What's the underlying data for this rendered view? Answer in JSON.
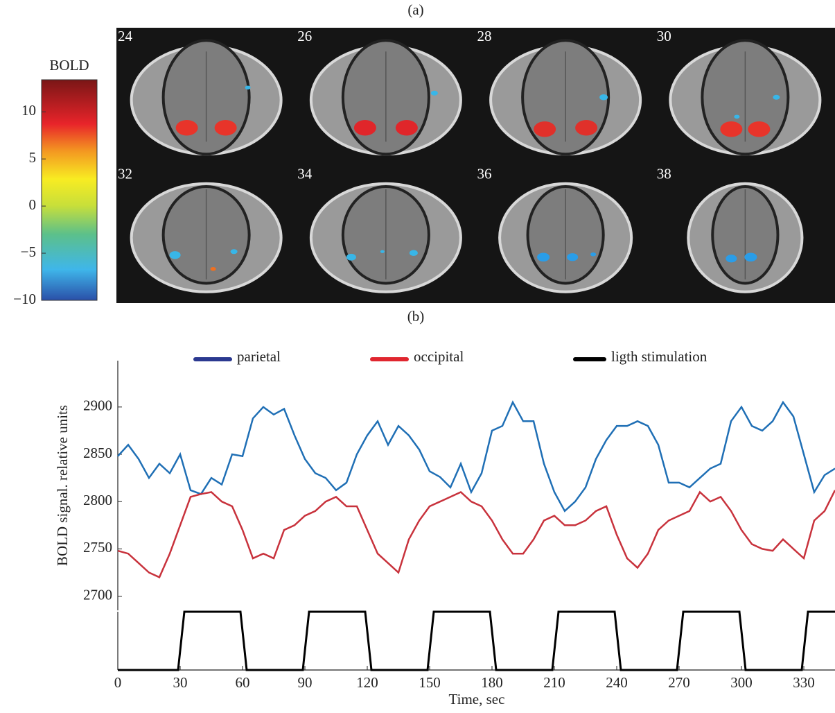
{
  "panel_a": {
    "label": "(a)",
    "colorbar": {
      "title": "BOLD",
      "lim": [
        -10,
        13.4
      ],
      "ticks": [
        {
          "value": -10,
          "label": "−10"
        },
        {
          "value": -5,
          "label": "−5"
        },
        0,
        5,
        10
      ]
    },
    "slices": [
      "24",
      "26",
      "28",
      "30",
      "32",
      "34",
      "36",
      "38"
    ]
  },
  "chart_data": [
    {
      "type": "line",
      "panel_label": "(b)",
      "ylabel": "BOLD signal. relative units",
      "x": [
        0,
        5,
        10,
        15,
        20,
        25,
        30,
        35,
        40,
        45,
        50,
        55,
        60,
        65,
        70,
        75,
        80,
        85,
        90,
        95,
        100,
        105,
        110,
        115,
        120,
        125,
        130,
        135,
        140,
        145,
        150,
        155,
        160,
        165,
        170,
        175,
        180,
        185,
        190,
        195,
        200,
        205,
        210,
        215,
        220,
        225,
        230,
        235,
        240,
        245,
        250,
        255,
        260,
        265,
        270,
        275,
        280,
        285,
        290,
        295,
        300,
        305,
        310,
        315,
        320,
        325,
        330,
        335,
        340,
        345
      ],
      "xlim": [
        0,
        345
      ],
      "ylim": [
        2685,
        2949
      ],
      "yticks": [
        2700,
        2750,
        2800,
        2850,
        2900
      ],
      "series": [
        {
          "name": "parietal",
          "color": "#1f6fb5",
          "legend_color": "#2b3990",
          "values": [
            2848,
            2860,
            2845,
            2825,
            2840,
            2830,
            2850,
            2812,
            2808,
            2825,
            2818,
            2850,
            2848,
            2888,
            2900,
            2892,
            2898,
            2870,
            2845,
            2830,
            2825,
            2812,
            2820,
            2850,
            2870,
            2885,
            2860,
            2880,
            2870,
            2855,
            2832,
            2826,
            2815,
            2840,
            2810,
            2830,
            2875,
            2880,
            2905,
            2885,
            2885,
            2840,
            2810,
            2790,
            2800,
            2815,
            2845,
            2865,
            2880,
            2880,
            2885,
            2880,
            2860,
            2820,
            2820,
            2815,
            2825,
            2835,
            2840,
            2885,
            2900,
            2880,
            2875,
            2885,
            2905,
            2890,
            2850,
            2810,
            2828,
            2835
          ]
        },
        {
          "name": "occipital",
          "color": "#c8323c",
          "legend_color": "#e0262f",
          "values": [
            2748,
            2745,
            2735,
            2725,
            2720,
            2745,
            2775,
            2805,
            2808,
            2810,
            2800,
            2795,
            2770,
            2740,
            2745,
            2740,
            2770,
            2775,
            2785,
            2790,
            2800,
            2805,
            2795,
            2795,
            2770,
            2745,
            2735,
            2725,
            2760,
            2780,
            2795,
            2800,
            2805,
            2810,
            2800,
            2795,
            2780,
            2760,
            2745,
            2745,
            2760,
            2780,
            2785,
            2775,
            2775,
            2780,
            2790,
            2795,
            2765,
            2740,
            2730,
            2745,
            2770,
            2780,
            2785,
            2790,
            2810,
            2800,
            2805,
            2790,
            2770,
            2755,
            2750,
            2748,
            2760,
            2750,
            2740,
            2780,
            2790,
            2812
          ]
        }
      ]
    },
    {
      "type": "line",
      "xlabel": "Time, sec",
      "x": [
        0,
        29,
        32,
        59,
        62,
        89,
        92,
        119,
        122,
        149,
        152,
        179,
        182,
        209,
        212,
        239,
        242,
        269,
        272,
        299,
        302,
        329,
        332,
        345
      ],
      "xlim": [
        0,
        345
      ],
      "ylim": [
        0,
        1
      ],
      "xticks": [
        0,
        30,
        60,
        90,
        120,
        150,
        180,
        210,
        240,
        270,
        300,
        330
      ],
      "series": [
        {
          "name": "ligth stimulation",
          "color": "#000000",
          "values": [
            0,
            0,
            1,
            1,
            0,
            0,
            1,
            1,
            0,
            0,
            1,
            1,
            0,
            0,
            1,
            1,
            0,
            0,
            1,
            1,
            0,
            0,
            1,
            1
          ]
        }
      ]
    }
  ]
}
